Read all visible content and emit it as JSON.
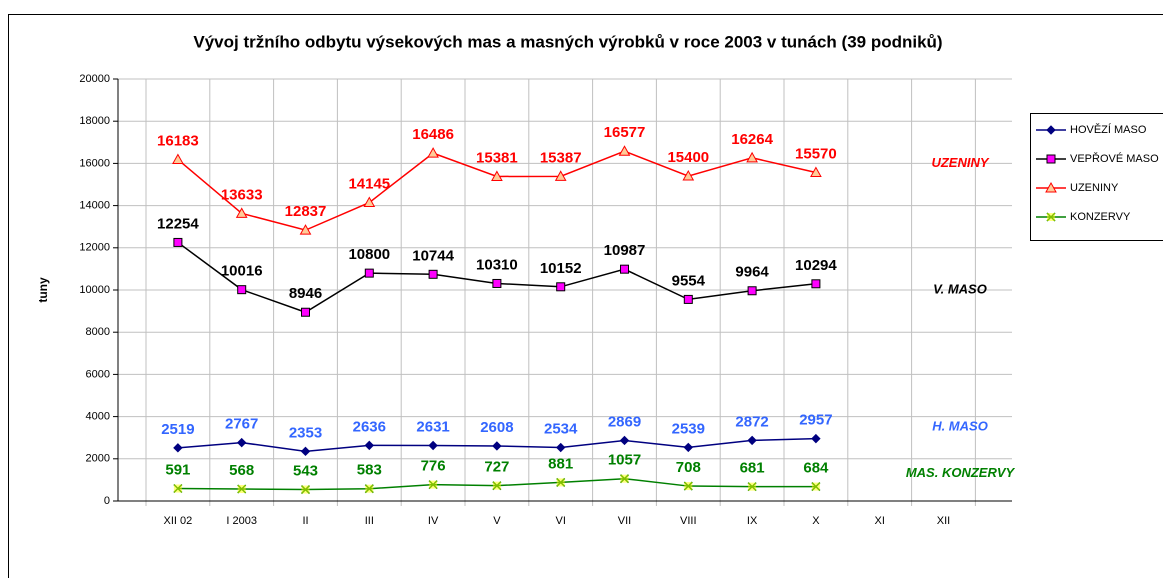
{
  "chart_data": {
    "type": "line",
    "title": "Vývoj tržního odbytu výsekových mas a masných výrobků v roce 2003 v tunách (39 podniků)",
    "y_label": "tuny",
    "categories": [
      "XII  02",
      "I  2003",
      "II",
      "III",
      "IV",
      "V",
      "VI",
      "VII",
      "VIII",
      "IX",
      "X",
      "XI",
      "XII"
    ],
    "ylim": [
      0,
      20000
    ],
    "yticks": [
      0,
      2000,
      4000,
      6000,
      8000,
      10000,
      12000,
      14000,
      16000,
      18000,
      20000
    ],
    "grid": true,
    "legend": "right",
    "series": [
      {
        "name": "HOVĚZÍ MASO",
        "color": "#000080",
        "marker": "diamond",
        "marker_color": "#000080",
        "label_color": "#3366ff",
        "values": [
          2519,
          2767,
          2353,
          2636,
          2631,
          2608,
          2534,
          2869,
          2539,
          2872,
          2957,
          null,
          null
        ]
      },
      {
        "name": "VEPŘOVÉ MASO",
        "color": "#000000",
        "marker": "square",
        "marker_color": "#ff00ff",
        "label_color": "#000000",
        "values": [
          12254,
          10016,
          8946,
          10800,
          10744,
          10310,
          10152,
          10987,
          9554,
          9964,
          10294,
          null,
          null
        ]
      },
      {
        "name": "UZENINY",
        "color": "#ff0000",
        "marker": "triangle",
        "marker_color": "#ffcc99",
        "label_color": "#ff0000",
        "values": [
          16183,
          13633,
          12837,
          14145,
          16486,
          15381,
          15387,
          16577,
          15400,
          16264,
          15570,
          null,
          null
        ]
      },
      {
        "name": "KONZERVY",
        "color": "#008000",
        "marker": "x",
        "marker_color": "#ffff00",
        "label_color": "#008000",
        "values": [
          591,
          568,
          543,
          583,
          776,
          727,
          881,
          1057,
          708,
          681,
          684,
          null,
          null
        ]
      }
    ],
    "annotations": [
      {
        "text": "UZENINY",
        "color": "#ff0000",
        "y": 16000
      },
      {
        "text": "V. MASO",
        "color": "#000000",
        "y": 10000
      },
      {
        "text": "H. MASO",
        "color": "#3366ff",
        "y": 3500
      },
      {
        "text": "MAS. KONZERVY",
        "color": "#008000",
        "y": 1300
      }
    ]
  }
}
